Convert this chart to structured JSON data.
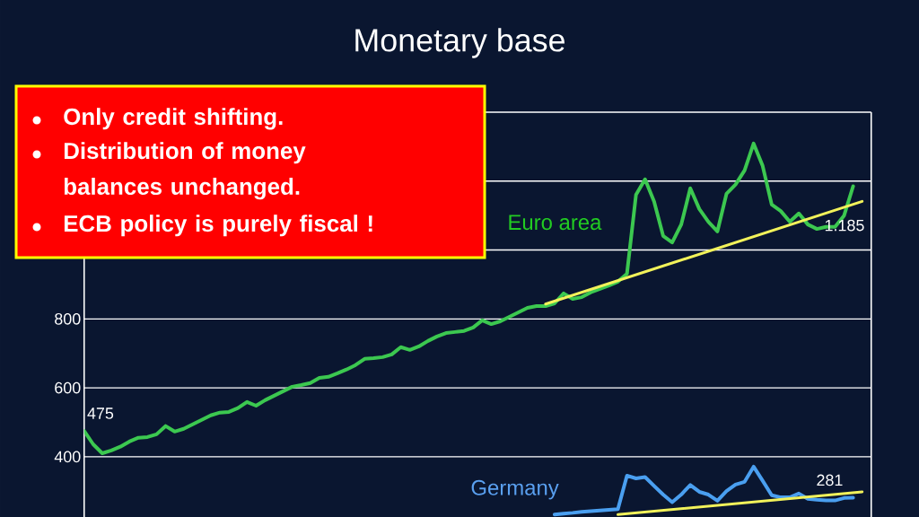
{
  "chart_data": {
    "type": "line",
    "title": "Monetary base",
    "categories": [
      null,
      null,
      null,
      null,
      null,
      null,
      null,
      null,
      null,
      null,
      null,
      null,
      null,
      null,
      null,
      null,
      null,
      null,
      null,
      null,
      null,
      null,
      null,
      null,
      null,
      null,
      null,
      null,
      null,
      null,
      null,
      null,
      null,
      null,
      null,
      null,
      null,
      null,
      null,
      null,
      null,
      null,
      null,
      null,
      null,
      null,
      null,
      null,
      null,
      null,
      null,
      null,
      null,
      null,
      null,
      null,
      null,
      null,
      null,
      null,
      null,
      null,
      null,
      null,
      null,
      null,
      null,
      null,
      null,
      null,
      null,
      null,
      null,
      null,
      null,
      null,
      null,
      null,
      null,
      null,
      null,
      null,
      null,
      null,
      null,
      null,
      null,
      null
    ],
    "series": [
      {
        "name": "Euro area",
        "color": "#3cc850",
        "values": [
          475,
          436,
          410,
          418,
          429,
          444,
          455,
          457,
          465,
          489,
          473,
          481,
          494,
          507,
          520,
          528,
          530,
          541,
          559,
          548,
          564,
          577,
          590,
          603,
          608,
          614,
          629,
          632,
          642,
          653,
          666,
          684,
          686,
          689,
          697,
          718,
          710,
          720,
          736,
          749,
          759,
          762,
          765,
          775,
          796,
          785,
          793,
          806,
          819,
          832,
          837,
          837,
          845,
          874,
          858,
          863,
          877,
          887,
          897,
          908,
          931,
          1160,
          1205,
          1141,
          1041,
          1022,
          1074,
          1179,
          1119,
          1082,
          1054,
          1163,
          1190,
          1231,
          1309,
          1244,
          1132,
          1113,
          1082,
          1106,
          1074,
          1061,
          1067,
          1067,
          1100,
          1185,
          null,
          null
        ]
      },
      {
        "name": "Germany",
        "color": "#4a9ff0",
        "values": [
          null,
          null,
          null,
          null,
          null,
          null,
          null,
          null,
          null,
          null,
          null,
          null,
          null,
          null,
          null,
          null,
          null,
          null,
          null,
          null,
          null,
          null,
          null,
          null,
          null,
          null,
          null,
          null,
          null,
          null,
          null,
          null,
          null,
          null,
          null,
          null,
          null,
          null,
          null,
          null,
          null,
          null,
          null,
          null,
          null,
          null,
          null,
          null,
          null,
          null,
          null,
          null,
          232,
          235,
          237,
          240,
          242,
          244,
          246,
          248,
          345,
          337,
          341,
          315,
          290,
          268,
          290,
          318,
          298,
          290,
          272,
          300,
          319,
          327,
          371,
          330,
          288,
          282,
          282,
          293,
          278,
          275,
          273,
          273,
          280,
          281,
          null,
          null
        ]
      },
      {
        "type": "line",
        "color": "#f2f25a",
        "values": [
          null,
          null,
          null,
          null,
          null,
          null,
          null,
          null,
          null,
          null,
          null,
          null,
          null,
          null,
          null,
          null,
          null,
          null,
          null,
          null,
          null,
          null,
          null,
          null,
          null,
          null,
          null,
          null,
          null,
          null,
          null,
          null,
          null,
          null,
          null,
          null,
          null,
          null,
          null,
          null,
          null,
          null,
          null,
          null,
          null,
          null,
          null,
          null,
          null,
          null,
          null,
          843,
          null,
          null,
          null,
          null,
          null,
          null,
          null,
          null,
          null,
          null,
          null,
          null,
          null,
          null,
          null,
          null,
          null,
          null,
          null,
          null,
          null,
          null,
          null,
          null,
          null,
          null,
          null,
          null,
          null,
          null,
          null,
          null,
          null,
          null,
          1141,
          null
        ]
      },
      {
        "type": "line",
        "color": "#f2f25a",
        "values": [
          null,
          null,
          null,
          null,
          null,
          null,
          null,
          null,
          null,
          null,
          null,
          null,
          null,
          null,
          null,
          null,
          null,
          null,
          null,
          null,
          null,
          null,
          null,
          null,
          null,
          null,
          null,
          null,
          null,
          null,
          null,
          null,
          null,
          null,
          null,
          null,
          null,
          null,
          null,
          null,
          null,
          null,
          null,
          null,
          null,
          null,
          null,
          null,
          null,
          null,
          null,
          null,
          null,
          null,
          null,
          null,
          null,
          null,
          null,
          232,
          null,
          null,
          null,
          null,
          null,
          null,
          null,
          null,
          null,
          null,
          null,
          null,
          null,
          null,
          null,
          null,
          null,
          null,
          null,
          null,
          null,
          null,
          null,
          null,
          null,
          null,
          298,
          null
        ]
      }
    ],
    "ylim": [
      225,
      1400
    ],
    "yticks": [
      400,
      600,
      800,
      {
        "value": 1000,
        "label": null
      },
      {
        "value": 1200,
        "label": null
      },
      {
        "value": 1400,
        "label": null
      }
    ],
    "tick_labels": "y",
    "grid": "y",
    "annotations": [
      "Only credit shifting.",
      "Distribution of money balances unchanged.",
      "ECB policy is purely fiscal !",
      "475",
      "1.185",
      "281"
    ]
  }
}
